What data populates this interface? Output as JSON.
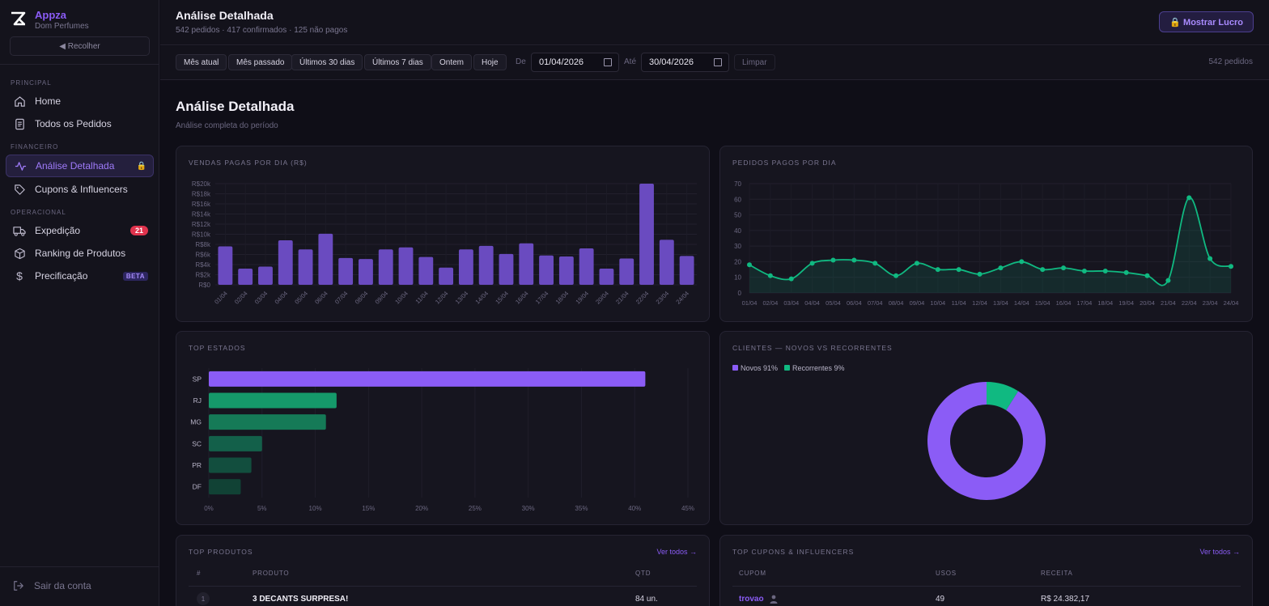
{
  "brand": {
    "name": "Appza",
    "subtitle": "Dom Perfumes"
  },
  "sidebar": {
    "collapse_label": "◀ Recolher",
    "sections": {
      "principal": "PRINCIPAL",
      "financeiro": "FINANCEIRO",
      "operacional": "OPERACIONAL"
    },
    "items": [
      {
        "label": "Home"
      },
      {
        "label": "Todos os Pedidos"
      },
      {
        "label": "Análise Detalhada",
        "badge": "🔒"
      },
      {
        "label": "Cupons & Influencers"
      },
      {
        "label": "Expedição",
        "badge": "21"
      },
      {
        "label": "Ranking de Produtos"
      },
      {
        "label": "Precificação",
        "badge": "BETA"
      }
    ],
    "logout_label": "Sair da conta"
  },
  "header": {
    "title": "Análise Detalhada",
    "subtitle": "542 pedidos · 417 confirmados · 125 não pagos",
    "profit_button": "🔒 Mostrar Lucro"
  },
  "filters": {
    "chips": [
      "Mês atual",
      "Mês passado",
      "Últimos 30 dias",
      "Últimos 7 dias",
      "Ontem",
      "Hoje"
    ],
    "from_label": "De",
    "from_value": "01/04/2026",
    "to_label": "Até",
    "to_value": "30/04/2026",
    "clear_label": "Limpar",
    "count": "542 pedidos"
  },
  "page": {
    "title": "Análise Detalhada",
    "subtitle": "Análise completa do período"
  },
  "colors": {
    "accent": "#8b5cf6",
    "green": "#10b981",
    "bar": "#6d4bc2",
    "danger": "#e0334d"
  },
  "chart_data": [
    {
      "type": "bar",
      "title": "VENDAS PAGAS POR DIA (R$)",
      "categories": [
        "01/04",
        "02/04",
        "03/04",
        "04/04",
        "05/04",
        "06/04",
        "07/04",
        "08/04",
        "09/04",
        "10/04",
        "11/04",
        "12/04",
        "13/04",
        "14/04",
        "15/04",
        "16/04",
        "17/04",
        "18/04",
        "19/04",
        "20/04",
        "21/04",
        "22/04",
        "23/04",
        "24/04"
      ],
      "values": [
        7600,
        3200,
        3600,
        8800,
        7000,
        10100,
        5300,
        5100,
        7000,
        7400,
        5500,
        3400,
        7000,
        7700,
        6100,
        8200,
        5800,
        5600,
        7200,
        3200,
        5200,
        20000,
        8900,
        5700
      ],
      "yticks": [
        "R$0",
        "R$2k",
        "R$4k",
        "R$6k",
        "R$8k",
        "R$10k",
        "R$12k",
        "R$14k",
        "R$16k",
        "R$18k",
        "R$20k"
      ],
      "ylim": [
        0,
        20000
      ]
    },
    {
      "type": "line",
      "title": "PEDIDOS PAGOS POR DIA",
      "categories": [
        "01/04",
        "02/04",
        "03/04",
        "04/04",
        "05/04",
        "06/04",
        "07/04",
        "08/04",
        "09/04",
        "10/04",
        "11/04",
        "12/04",
        "13/04",
        "14/04",
        "15/04",
        "16/04",
        "17/04",
        "18/04",
        "19/04",
        "20/04",
        "21/04",
        "22/04",
        "23/04",
        "24/04"
      ],
      "values": [
        18,
        11,
        9,
        19,
        21,
        21,
        19,
        11,
        19,
        15,
        15,
        12,
        16,
        20,
        15,
        16,
        14,
        14,
        13,
        11,
        8,
        61,
        22,
        17
      ],
      "yticks": [
        "0",
        "10",
        "20",
        "30",
        "40",
        "50",
        "60",
        "70"
      ],
      "ylim": [
        0,
        70
      ]
    },
    {
      "type": "bar",
      "orientation": "horizontal",
      "title": "TOP ESTADOS",
      "categories": [
        "SP",
        "RJ",
        "MG",
        "SC",
        "PR",
        "DF"
      ],
      "values": [
        41,
        12,
        11,
        5,
        4,
        3
      ],
      "xticks": [
        "0%",
        "5%",
        "10%",
        "15%",
        "20%",
        "25%",
        "30%",
        "35%",
        "40%",
        "45%"
      ],
      "xlim": [
        0,
        45
      ]
    },
    {
      "type": "pie",
      "donut": true,
      "title": "CLIENTES — NOVOS VS RECORRENTES",
      "series": [
        {
          "name": "Novos 91%",
          "value": 91
        },
        {
          "name": "Recorrentes 9%",
          "value": 9
        }
      ]
    }
  ],
  "top_products": {
    "title": "TOP PRODUTOS",
    "see_all": "Ver todos →",
    "headers": [
      "#",
      "PRODUTO",
      "QTD"
    ],
    "rows": [
      {
        "rank": "1",
        "name": "3 DECANTS SURPRESA!",
        "qty": "84 un."
      }
    ]
  },
  "top_coupons": {
    "title": "TOP CUPONS & INFLUENCERS",
    "see_all": "Ver todos →",
    "headers": [
      "CUPOM",
      "USOS",
      "RECEITA"
    ],
    "rows": [
      {
        "coupon": "trovao",
        "uses": "49",
        "revenue": "R$ 24.382,17"
      }
    ]
  }
}
